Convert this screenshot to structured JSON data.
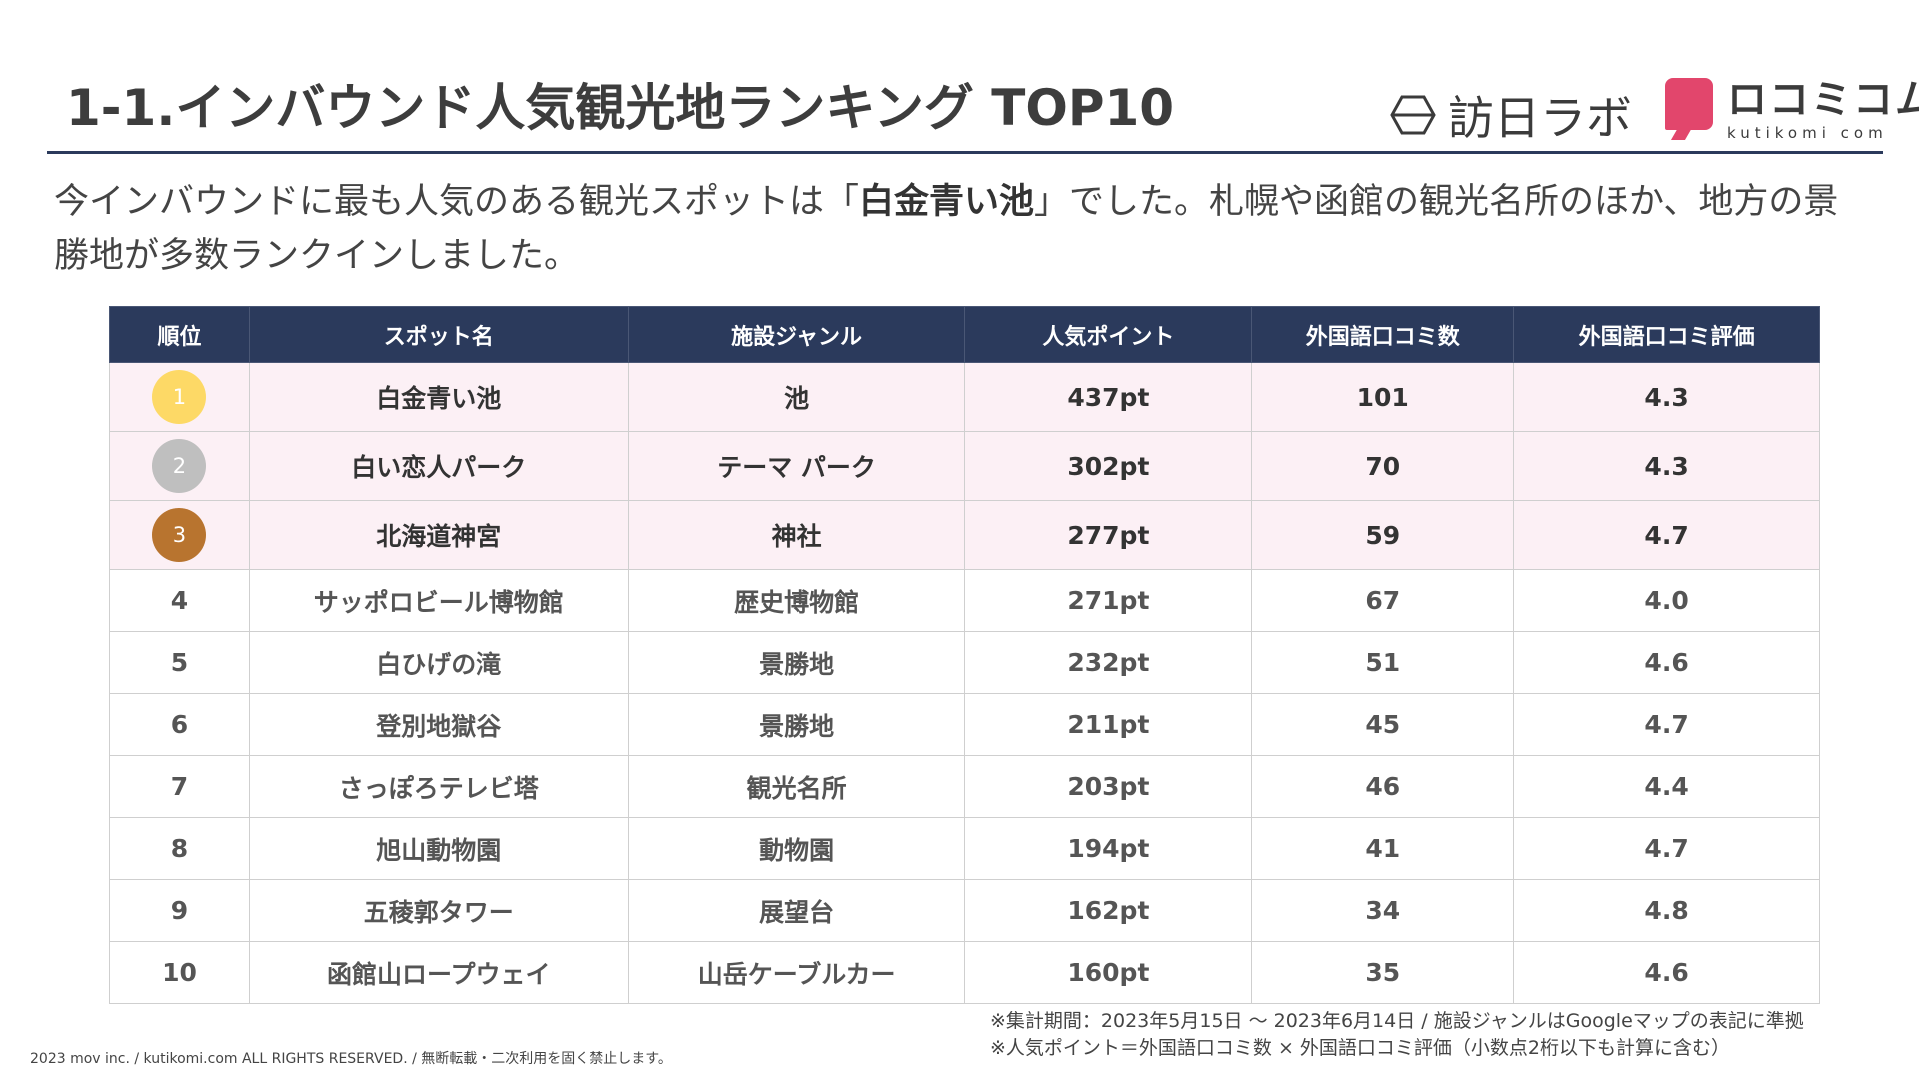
{
  "title": "1-1.インバウンド人気観光地ランキング TOP10",
  "logos": {
    "houjitsu_text": "訪日ラボ",
    "kuti_jp": "ロコミコム",
    "kuti_en": "kutikomi com"
  },
  "lead": {
    "before": "今インバウンドに最も人気のある観光スポットは「",
    "highlight": "白金青い池",
    "after": "」でした。札幌や函館の観光名所のほか、地方の景勝地が多数ランクインしました。"
  },
  "table": {
    "headers": [
      "順位",
      "スポット名",
      "施設ジャンル",
      "人気ポイント",
      "外国語口コミ数",
      "外国語口コミ評価"
    ],
    "rows": [
      {
        "rank": "1",
        "name": "白金青い池",
        "genre": "池",
        "points": "437pt",
        "reviews": "101",
        "rating": "4.3",
        "medal_color": "#fdd966"
      },
      {
        "rank": "2",
        "name": "白い恋人パーク",
        "genre": "テーマ パーク",
        "points": "302pt",
        "reviews": "70",
        "rating": "4.3",
        "medal_color": "#bfbfbf"
      },
      {
        "rank": "3",
        "name": "北海道神宮",
        "genre": "神社",
        "points": "277pt",
        "reviews": "59",
        "rating": "4.7",
        "medal_color": "#b8742f"
      },
      {
        "rank": "4",
        "name": "サッポロビール博物館",
        "genre": "歴史博物館",
        "points": "271pt",
        "reviews": "67",
        "rating": "4.0"
      },
      {
        "rank": "5",
        "name": "白ひげの滝",
        "genre": "景勝地",
        "points": "232pt",
        "reviews": "51",
        "rating": "4.6"
      },
      {
        "rank": "6",
        "name": "登別地獄谷",
        "genre": "景勝地",
        "points": "211pt",
        "reviews": "45",
        "rating": "4.7"
      },
      {
        "rank": "7",
        "name": "さっぽろテレビ塔",
        "genre": "観光名所",
        "points": "203pt",
        "reviews": "46",
        "rating": "4.4"
      },
      {
        "rank": "8",
        "name": "旭山動物園",
        "genre": "動物園",
        "points": "194pt",
        "reviews": "41",
        "rating": "4.7"
      },
      {
        "rank": "9",
        "name": "五稜郭タワー",
        "genre": "展望台",
        "points": "162pt",
        "reviews": "34",
        "rating": "4.8"
      },
      {
        "rank": "10",
        "name": "函館山ロープウェイ",
        "genre": "山岳ケーブルカー",
        "points": "160pt",
        "reviews": "35",
        "rating": "4.6"
      }
    ]
  },
  "footnotes": [
    "※集計期間：2023年5月15日 〜 2023年6月14日 / 施設ジャンルはGoogleマップの表記に準拠",
    "※人気ポイント＝外国語口コミ数 × 外国語口コミ評価（小数点2桁以下も計算に含む）"
  ],
  "copyright": "2023 mov inc. / kutikomi.com ALL RIGHTS RESERVED. / 無断転載・二次利用を固く禁止します。",
  "colors": {
    "header_bg": "#2b3a5c",
    "top3_bg": "#fcf0f5",
    "kuti_brand": "#e2466c"
  }
}
